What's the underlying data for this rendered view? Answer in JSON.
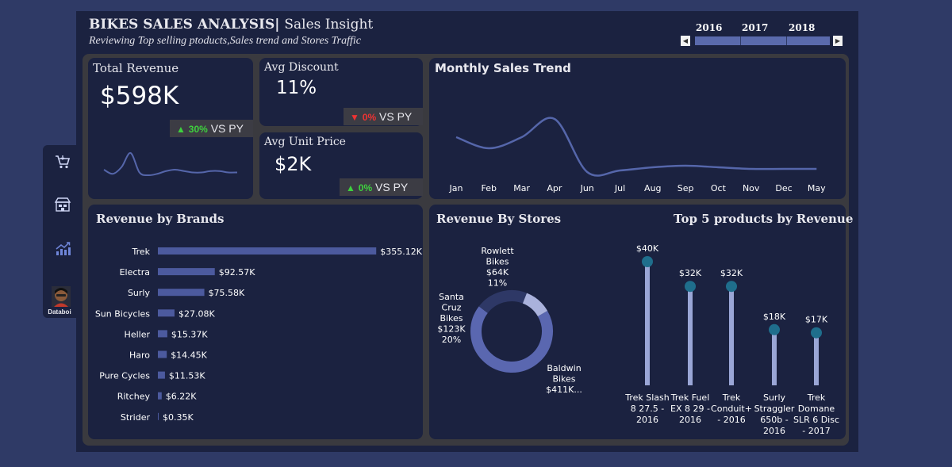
{
  "header": {
    "title_main": "BIKES SALES ANALYSIS",
    "title_sep": "|",
    "title_sub": "Sales Insight",
    "subtitle": "Reviewing Top selling ptoducts,Sales trend and Stores Traffic",
    "years": [
      "2016",
      "2017",
      "2018"
    ]
  },
  "sidebar": {
    "items": [
      {
        "icon": "shopping-cart-icon"
      },
      {
        "icon": "store-icon"
      },
      {
        "icon": "growth-chart-icon"
      }
    ],
    "avatar_label": "Databoi"
  },
  "kpis": {
    "total_revenue": {
      "title": "Total Revenue",
      "value": "$598K",
      "delta_arrow": "▲",
      "delta": "30%",
      "vs": "VS PY"
    },
    "avg_discount": {
      "title": "Avg Discount",
      "value": "11%",
      "delta_arrow": "▼",
      "delta": "0%",
      "vs": "VS PY"
    },
    "avg_unit_price": {
      "title": "Avg Unit Price",
      "value": "$2K",
      "delta_arrow": "▲",
      "delta": "0%",
      "vs": "VS PY"
    }
  },
  "colors": {
    "background": "#2f3a66",
    "panel": "#1b2240",
    "accent": "#5566aa",
    "bar": "#4c5a9e",
    "donut_main": "#5a67b0",
    "donut_dark": "#2e3866",
    "donut_light": "#aab2dc",
    "lollipop_stem": "#9aa6d6",
    "lollipop_head": "#1f6e8c",
    "up": "#3ed13e",
    "down": "#e33333"
  },
  "chart_data": [
    {
      "id": "revenue_sparkline",
      "type": "line",
      "values": [
        10,
        7,
        12,
        22,
        8,
        6,
        7,
        9,
        10,
        9,
        8,
        8,
        9,
        9,
        8,
        8
      ]
    },
    {
      "id": "monthly_sales_trend",
      "type": "line",
      "title": "Monthly Sales Trend",
      "categories": [
        "Jan",
        "Feb",
        "Mar",
        "Apr",
        "Jun",
        "Jul",
        "Aug",
        "Sep",
        "Oct",
        "Nov",
        "Dec",
        "May"
      ],
      "values": [
        62,
        48,
        62,
        85,
        18,
        20,
        24,
        26,
        24,
        22,
        22,
        22
      ]
    },
    {
      "id": "revenue_by_brands",
      "type": "bar",
      "title": "Revenue by Brands",
      "categories": [
        "Trek",
        "Electra",
        "Surly",
        "Sun Bicycles",
        "Heller",
        "Haro",
        "Pure Cycles",
        "Ritchey",
        "Strider"
      ],
      "values": [
        355.12,
        92.57,
        75.58,
        27.08,
        15.37,
        14.45,
        11.53,
        6.22,
        0.35
      ],
      "labels": [
        "$355.12K",
        "$92.57K",
        "$75.58K",
        "$27.08K",
        "$15.37K",
        "$14.45K",
        "$11.53K",
        "$6.22K",
        "$0.35K"
      ]
    },
    {
      "id": "revenue_by_stores",
      "type": "pie",
      "title": "Revenue By Stores",
      "categories": [
        "Baldwin Bikes",
        "Santa Cruz Bikes",
        "Rowlett Bikes"
      ],
      "values": [
        411,
        123,
        64
      ],
      "labels": [
        [
          "Baldwin",
          "Bikes",
          "$411K..."
        ],
        [
          "Santa",
          "Cruz",
          "Bikes",
          "$123K",
          "20%"
        ],
        [
          "Rowlett",
          "Bikes",
          "$64K",
          "11%"
        ]
      ]
    },
    {
      "id": "top5_products",
      "type": "bar",
      "title": "Top 5 products by Revenue",
      "categories": [
        "Trek Slash 8 27.5 - 2016",
        "Trek Fuel EX 8 29 - 2016",
        "Trek Conduit+ - 2016",
        "Surly Straggler 650b - 2016",
        "Trek Domane SLR 6 Disc - 2017"
      ],
      "values": [
        40,
        32,
        32,
        18,
        17
      ],
      "labels": [
        "$40K",
        "$32K",
        "$32K",
        "$18K",
        "$17K"
      ],
      "category_lines": [
        [
          "Trek Slash",
          "8 27.5 -",
          "2016"
        ],
        [
          "Trek Fuel",
          "EX 8 29 -",
          "2016"
        ],
        [
          "Trek",
          "Conduit+",
          "- 2016"
        ],
        [
          "Surly",
          "Straggler",
          "650b -",
          "2016"
        ],
        [
          "Trek",
          "Domane",
          "SLR 6 Disc",
          "- 2017"
        ]
      ]
    }
  ]
}
